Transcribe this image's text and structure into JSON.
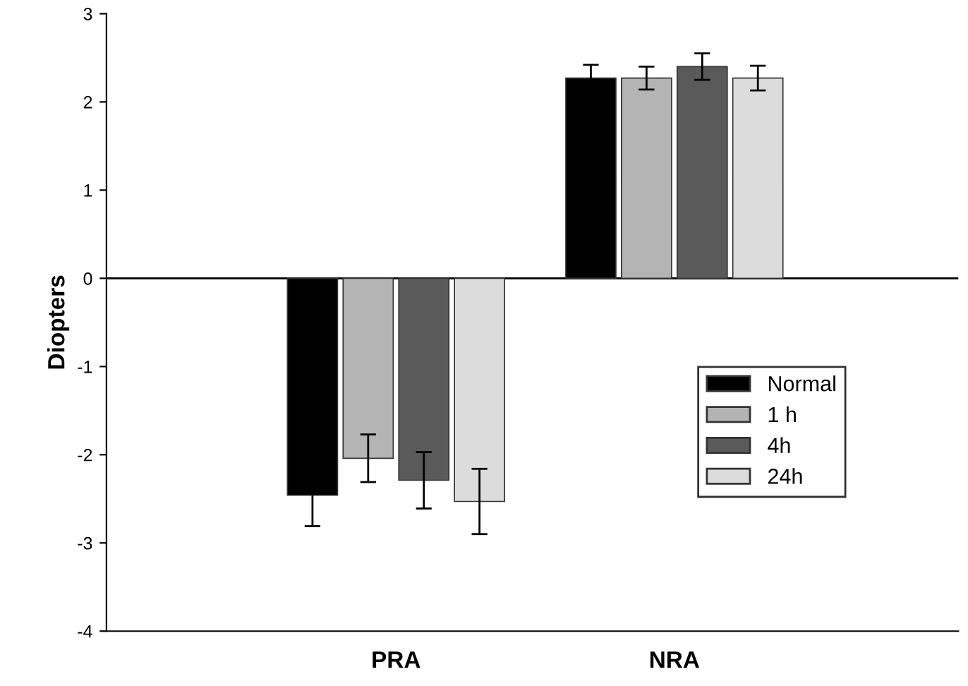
{
  "chart_data": {
    "type": "bar",
    "ylabel": "Diopters",
    "categories": [
      "PRA",
      "NRA"
    ],
    "ylim": [
      -4,
      3
    ],
    "yticks": [
      -4,
      -3,
      -2,
      -1,
      0,
      1,
      2,
      3
    ],
    "legend": "bottom right",
    "grid": false,
    "series": [
      {
        "name": "Normal",
        "color": "#000000",
        "values": [
          -2.46,
          2.27
        ],
        "errors": [
          0.35,
          0.15
        ]
      },
      {
        "name": "1 h",
        "color": "#b4b4b4",
        "values": [
          -2.04,
          2.27
        ],
        "errors": [
          0.27,
          0.13
        ]
      },
      {
        "name": "4h",
        "color": "#5a5a5a",
        "values": [
          -2.29,
          2.4
        ],
        "errors": [
          0.32,
          0.15
        ]
      },
      {
        "name": "24h",
        "color": "#dcdcdc",
        "values": [
          -2.53,
          2.27
        ],
        "errors": [
          0.37,
          0.14
        ]
      }
    ],
    "ref_lines": [
      {
        "axis": "y",
        "value": 0,
        "label": null
      }
    ]
  }
}
